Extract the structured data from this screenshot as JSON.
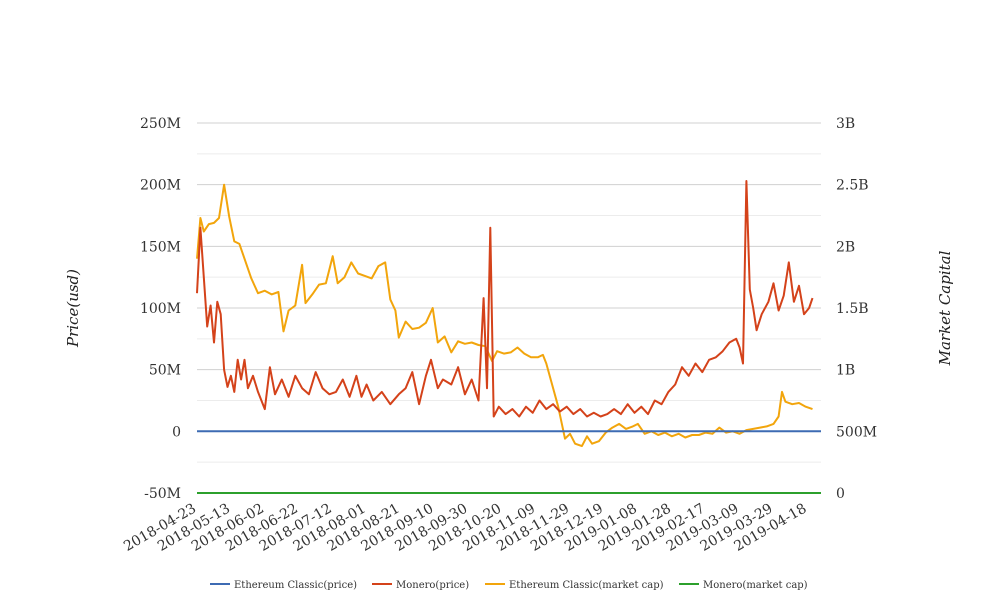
{
  "chart_data": {
    "type": "line",
    "title": "",
    "y_left_label": "Price(usd)",
    "y_right_label": "Market Capital",
    "y_left_ticks": [
      "250M",
      "200M",
      "150M",
      "100M",
      "50M",
      "0",
      "-50M"
    ],
    "y_right_ticks": [
      "3B",
      "2.5B",
      "2B",
      "1.5B",
      "1B",
      "500M",
      "0"
    ],
    "y_left_range": [
      -50000000,
      250000000
    ],
    "y_right_range": [
      0,
      3000000000
    ],
    "x_ticks": [
      "2018-04-23",
      "2018-05-13",
      "2018-06-02",
      "2018-06-22",
      "2018-07-12",
      "2018-08-01",
      "2018-08-21",
      "2018-09-10",
      "2018-09-30",
      "2018-10-20",
      "2018-11-09",
      "2018-11-29",
      "2018-12-19",
      "2019-01-08",
      "2019-01-28",
      "2019-02-17",
      "2019-03-09",
      "2019-03-29",
      "2019-04-18"
    ],
    "x_range": [
      "2018-04-23",
      "2019-04-26"
    ],
    "grid": true,
    "legend_position": "bottom",
    "series": [
      {
        "name": "Ethereum Classic(price)",
        "color": "#3d6bb3",
        "axis": "left",
        "points": [
          [
            "2018-04-23",
            0
          ],
          [
            "2019-04-26",
            0
          ]
        ]
      },
      {
        "name": "Monero(price)",
        "color": "#d4421a",
        "axis": "left",
        "points": [
          [
            "2018-04-23",
            112
          ],
          [
            "2018-04-25",
            165
          ],
          [
            "2018-04-27",
            125
          ],
          [
            "2018-04-29",
            85
          ],
          [
            "2018-05-01",
            102
          ],
          [
            "2018-05-03",
            72
          ],
          [
            "2018-05-05",
            105
          ],
          [
            "2018-05-07",
            95
          ],
          [
            "2018-05-09",
            50
          ],
          [
            "2018-05-11",
            36
          ],
          [
            "2018-05-13",
            45
          ],
          [
            "2018-05-15",
            32
          ],
          [
            "2018-05-17",
            58
          ],
          [
            "2018-05-19",
            42
          ],
          [
            "2018-05-21",
            58
          ],
          [
            "2018-05-23",
            35
          ],
          [
            "2018-05-26",
            45
          ],
          [
            "2018-05-29",
            32
          ],
          [
            "2018-06-02",
            18
          ],
          [
            "2018-06-05",
            52
          ],
          [
            "2018-06-08",
            30
          ],
          [
            "2018-06-12",
            42
          ],
          [
            "2018-06-16",
            28
          ],
          [
            "2018-06-20",
            45
          ],
          [
            "2018-06-24",
            35
          ],
          [
            "2018-06-28",
            30
          ],
          [
            "2018-07-02",
            48
          ],
          [
            "2018-07-06",
            35
          ],
          [
            "2018-07-10",
            30
          ],
          [
            "2018-07-14",
            32
          ],
          [
            "2018-07-18",
            42
          ],
          [
            "2018-07-22",
            28
          ],
          [
            "2018-07-26",
            45
          ],
          [
            "2018-07-29",
            28
          ],
          [
            "2018-08-01",
            38
          ],
          [
            "2018-08-05",
            25
          ],
          [
            "2018-08-10",
            32
          ],
          [
            "2018-08-15",
            22
          ],
          [
            "2018-08-20",
            30
          ],
          [
            "2018-08-24",
            35
          ],
          [
            "2018-08-28",
            48
          ],
          [
            "2018-09-01",
            22
          ],
          [
            "2018-09-05",
            45
          ],
          [
            "2018-09-08",
            58
          ],
          [
            "2018-09-12",
            35
          ],
          [
            "2018-09-15",
            42
          ],
          [
            "2018-09-20",
            38
          ],
          [
            "2018-09-24",
            52
          ],
          [
            "2018-09-28",
            30
          ],
          [
            "2018-10-02",
            42
          ],
          [
            "2018-10-06",
            25
          ],
          [
            "2018-10-09",
            108
          ],
          [
            "2018-10-11",
            35
          ],
          [
            "2018-10-13",
            165
          ],
          [
            "2018-10-15",
            12
          ],
          [
            "2018-10-18",
            20
          ],
          [
            "2018-10-22",
            14
          ],
          [
            "2018-10-26",
            18
          ],
          [
            "2018-10-30",
            12
          ],
          [
            "2018-11-03",
            20
          ],
          [
            "2018-11-07",
            15
          ],
          [
            "2018-11-11",
            25
          ],
          [
            "2018-11-15",
            18
          ],
          [
            "2018-11-19",
            22
          ],
          [
            "2018-11-23",
            16
          ],
          [
            "2018-11-27",
            20
          ],
          [
            "2018-12-01",
            14
          ],
          [
            "2018-12-05",
            18
          ],
          [
            "2018-12-09",
            12
          ],
          [
            "2018-12-13",
            15
          ],
          [
            "2018-12-17",
            12
          ],
          [
            "2018-12-21",
            14
          ],
          [
            "2018-12-25",
            18
          ],
          [
            "2018-12-29",
            14
          ],
          [
            "2019-01-02",
            22
          ],
          [
            "2019-01-06",
            15
          ],
          [
            "2019-01-10",
            20
          ],
          [
            "2019-01-14",
            14
          ],
          [
            "2019-01-18",
            25
          ],
          [
            "2019-01-22",
            22
          ],
          [
            "2019-01-26",
            32
          ],
          [
            "2019-01-30",
            38
          ],
          [
            "2019-02-03",
            52
          ],
          [
            "2019-02-07",
            45
          ],
          [
            "2019-02-11",
            55
          ],
          [
            "2019-02-15",
            48
          ],
          [
            "2019-02-19",
            58
          ],
          [
            "2019-02-23",
            60
          ],
          [
            "2019-02-27",
            65
          ],
          [
            "2019-03-03",
            72
          ],
          [
            "2019-03-07",
            75
          ],
          [
            "2019-03-09",
            68
          ],
          [
            "2019-03-11",
            55
          ],
          [
            "2019-03-13",
            203
          ],
          [
            "2019-03-15",
            115
          ],
          [
            "2019-03-17",
            100
          ],
          [
            "2019-03-19",
            82
          ],
          [
            "2019-03-22",
            95
          ],
          [
            "2019-03-26",
            105
          ],
          [
            "2019-03-29",
            120
          ],
          [
            "2019-04-01",
            98
          ],
          [
            "2019-04-04",
            110
          ],
          [
            "2019-04-07",
            137
          ],
          [
            "2019-04-10",
            105
          ],
          [
            "2019-04-13",
            118
          ],
          [
            "2019-04-16",
            95
          ],
          [
            "2019-04-19",
            100
          ],
          [
            "2019-04-21",
            108
          ]
        ]
      },
      {
        "name": "Ethereum Classic(market cap)",
        "color": "#f2a50c",
        "axis": "right",
        "points": [
          [
            "2018-04-23",
            1900
          ],
          [
            "2018-04-25",
            2230
          ],
          [
            "2018-04-27",
            2120
          ],
          [
            "2018-04-30",
            2180
          ],
          [
            "2018-05-03",
            2190
          ],
          [
            "2018-05-06",
            2230
          ],
          [
            "2018-05-09",
            2500
          ],
          [
            "2018-05-12",
            2240
          ],
          [
            "2018-05-15",
            2040
          ],
          [
            "2018-05-18",
            2020
          ],
          [
            "2018-05-21",
            1900
          ],
          [
            "2018-05-25",
            1740
          ],
          [
            "2018-05-29",
            1620
          ],
          [
            "2018-06-02",
            1640
          ],
          [
            "2018-06-06",
            1610
          ],
          [
            "2018-06-10",
            1630
          ],
          [
            "2018-06-13",
            1310
          ],
          [
            "2018-06-16",
            1480
          ],
          [
            "2018-06-20",
            1520
          ],
          [
            "2018-06-24",
            1850
          ],
          [
            "2018-06-26",
            1540
          ],
          [
            "2018-06-30",
            1610
          ],
          [
            "2018-07-04",
            1690
          ],
          [
            "2018-07-08",
            1700
          ],
          [
            "2018-07-12",
            1920
          ],
          [
            "2018-07-15",
            1700
          ],
          [
            "2018-07-19",
            1750
          ],
          [
            "2018-07-23",
            1870
          ],
          [
            "2018-07-27",
            1780
          ],
          [
            "2018-07-31",
            1760
          ],
          [
            "2018-08-04",
            1740
          ],
          [
            "2018-08-08",
            1840
          ],
          [
            "2018-08-12",
            1870
          ],
          [
            "2018-08-15",
            1570
          ],
          [
            "2018-08-18",
            1480
          ],
          [
            "2018-08-20",
            1260
          ],
          [
            "2018-08-24",
            1390
          ],
          [
            "2018-08-28",
            1330
          ],
          [
            "2018-09-01",
            1340
          ],
          [
            "2018-09-05",
            1380
          ],
          [
            "2018-09-09",
            1500
          ],
          [
            "2018-09-12",
            1220
          ],
          [
            "2018-09-16",
            1270
          ],
          [
            "2018-09-20",
            1140
          ],
          [
            "2018-09-24",
            1230
          ],
          [
            "2018-09-28",
            1210
          ],
          [
            "2018-10-02",
            1220
          ],
          [
            "2018-10-06",
            1200
          ],
          [
            "2018-10-10",
            1190
          ],
          [
            "2018-10-14",
            1070
          ],
          [
            "2018-10-17",
            1150
          ],
          [
            "2018-10-21",
            1130
          ],
          [
            "2018-10-25",
            1140
          ],
          [
            "2018-10-29",
            1180
          ],
          [
            "2018-11-02",
            1130
          ],
          [
            "2018-11-06",
            1100
          ],
          [
            "2018-11-10",
            1100
          ],
          [
            "2018-11-13",
            1120
          ],
          [
            "2018-11-15",
            1050
          ],
          [
            "2018-11-18",
            900
          ],
          [
            "2018-11-22",
            700
          ],
          [
            "2018-11-26",
            440
          ],
          [
            "2018-11-29",
            480
          ],
          [
            "2018-12-02",
            400
          ],
          [
            "2018-12-06",
            380
          ],
          [
            "2018-12-09",
            460
          ],
          [
            "2018-12-12",
            400
          ],
          [
            "2018-12-16",
            420
          ],
          [
            "2018-12-20",
            490
          ],
          [
            "2018-12-24",
            530
          ],
          [
            "2018-12-28",
            560
          ],
          [
            "2019-01-01",
            520
          ],
          [
            "2019-01-05",
            540
          ],
          [
            "2019-01-08",
            560
          ],
          [
            "2019-01-12",
            480
          ],
          [
            "2019-01-16",
            500
          ],
          [
            "2019-01-20",
            470
          ],
          [
            "2019-01-24",
            490
          ],
          [
            "2019-01-28",
            460
          ],
          [
            "2019-02-01",
            480
          ],
          [
            "2019-02-05",
            450
          ],
          [
            "2019-02-09",
            470
          ],
          [
            "2019-02-13",
            470
          ],
          [
            "2019-02-17",
            490
          ],
          [
            "2019-02-21",
            480
          ],
          [
            "2019-02-25",
            530
          ],
          [
            "2019-03-01",
            490
          ],
          [
            "2019-03-05",
            500
          ],
          [
            "2019-03-09",
            480
          ],
          [
            "2019-03-13",
            510
          ],
          [
            "2019-03-17",
            520
          ],
          [
            "2019-03-21",
            530
          ],
          [
            "2019-03-25",
            540
          ],
          [
            "2019-03-29",
            560
          ],
          [
            "2019-04-01",
            620
          ],
          [
            "2019-04-03",
            820
          ],
          [
            "2019-04-05",
            740
          ],
          [
            "2019-04-09",
            720
          ],
          [
            "2019-04-13",
            730
          ],
          [
            "2019-04-17",
            700
          ],
          [
            "2019-04-21",
            680
          ]
        ]
      },
      {
        "name": "Monero(market cap)",
        "color": "#2ca02c",
        "axis": "right",
        "points": [
          [
            "2018-04-23",
            0
          ],
          [
            "2019-04-26",
            0
          ]
        ]
      }
    ]
  }
}
